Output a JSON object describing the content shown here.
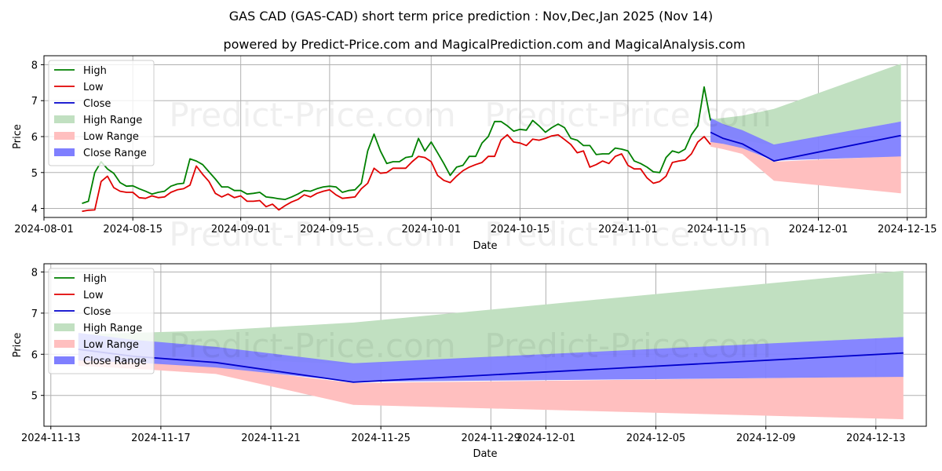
{
  "title": "GAS CAD (GAS-CAD) short term price prediction : Nov,Dec,Jan 2025 (Nov 14)",
  "subtitle": "powered by Predict-Price.com and MagicalPrediction.com and MagicalAnalysis.com",
  "watermark": "Predict-Price.com",
  "colors": {
    "high": "#008000",
    "low": "#e00000",
    "close": "#0000cc",
    "high_range": "#c1e0c1",
    "low_range": "#ffbfbf",
    "close_range": "#7f7fff"
  },
  "chart_data": [
    {
      "type": "line",
      "xlabel": "Date",
      "ylabel": "Price",
      "x_domain": [
        "2024-08-01",
        "2024-12-18"
      ],
      "ylim": [
        3.75,
        8.25
      ],
      "x_ticks": [
        "2024-08-01",
        "2024-08-15",
        "2024-09-01",
        "2024-09-15",
        "2024-10-01",
        "2024-10-15",
        "2024-11-01",
        "2024-11-15",
        "2024-12-01",
        "2024-12-15"
      ],
      "y_ticks": [
        4,
        5,
        6,
        7,
        8
      ],
      "grid": true,
      "legend": [
        "High",
        "Low",
        "Close",
        "High Range",
        "Low Range",
        "Close Range"
      ],
      "legend_position": "top-left",
      "history": {
        "dates": [
          "2024-08-07",
          "2024-08-08",
          "2024-08-09",
          "2024-08-10",
          "2024-08-11",
          "2024-08-12",
          "2024-08-13",
          "2024-08-14",
          "2024-08-15",
          "2024-08-16",
          "2024-08-17",
          "2024-08-18",
          "2024-08-19",
          "2024-08-20",
          "2024-08-21",
          "2024-08-22",
          "2024-08-23",
          "2024-08-24",
          "2024-08-25",
          "2024-08-26",
          "2024-08-27",
          "2024-08-28",
          "2024-08-29",
          "2024-08-30",
          "2024-08-31",
          "2024-09-01",
          "2024-09-02",
          "2024-09-03",
          "2024-09-04",
          "2024-09-05",
          "2024-09-06",
          "2024-09-07",
          "2024-09-08",
          "2024-09-09",
          "2024-09-10",
          "2024-09-11",
          "2024-09-12",
          "2024-09-13",
          "2024-09-14",
          "2024-09-15",
          "2024-09-16",
          "2024-09-17",
          "2024-09-18",
          "2024-09-19",
          "2024-09-20",
          "2024-09-21",
          "2024-09-22",
          "2024-09-23",
          "2024-09-24",
          "2024-09-25",
          "2024-09-26",
          "2024-09-27",
          "2024-09-28",
          "2024-09-29",
          "2024-09-30",
          "2024-10-01",
          "2024-10-02",
          "2024-10-03",
          "2024-10-04",
          "2024-10-05",
          "2024-10-06",
          "2024-10-07",
          "2024-10-08",
          "2024-10-09",
          "2024-10-10",
          "2024-10-11",
          "2024-10-12",
          "2024-10-13",
          "2024-10-14",
          "2024-10-15",
          "2024-10-16",
          "2024-10-17",
          "2024-10-18",
          "2024-10-19",
          "2024-10-20",
          "2024-10-21",
          "2024-10-22",
          "2024-10-23",
          "2024-10-24",
          "2024-10-25",
          "2024-10-26",
          "2024-10-27",
          "2024-10-28",
          "2024-10-29",
          "2024-10-30",
          "2024-10-31",
          "2024-11-01",
          "2024-11-02",
          "2024-11-03",
          "2024-11-04",
          "2024-11-05",
          "2024-11-06",
          "2024-11-07",
          "2024-11-08",
          "2024-11-09",
          "2024-11-10",
          "2024-11-11",
          "2024-11-12",
          "2024-11-13",
          "2024-11-14"
        ],
        "high": [
          4.14,
          4.2,
          5.0,
          5.3,
          5.1,
          4.98,
          4.72,
          4.62,
          4.63,
          4.55,
          4.48,
          4.4,
          4.45,
          4.48,
          4.62,
          4.68,
          4.7,
          5.38,
          5.32,
          5.22,
          5.02,
          4.82,
          4.6,
          4.6,
          4.5,
          4.5,
          4.4,
          4.42,
          4.45,
          4.32,
          4.3,
          4.27,
          4.25,
          4.32,
          4.4,
          4.5,
          4.48,
          4.55,
          4.6,
          4.62,
          4.6,
          4.45,
          4.5,
          4.52,
          4.7,
          5.6,
          6.07,
          5.6,
          5.25,
          5.3,
          5.3,
          5.42,
          5.45,
          5.95,
          5.6,
          5.85,
          5.55,
          5.25,
          4.92,
          5.15,
          5.2,
          5.45,
          5.45,
          5.82,
          6.0,
          6.42,
          6.42,
          6.3,
          6.15,
          6.2,
          6.18,
          6.45,
          6.3,
          6.12,
          6.25,
          6.35,
          6.25,
          5.95,
          5.9,
          5.75,
          5.75,
          5.5,
          5.52,
          5.52,
          5.68,
          5.65,
          5.6,
          5.32,
          5.25,
          5.15,
          5.02,
          5.0,
          5.42,
          5.6,
          5.55,
          5.65,
          6.05,
          6.3,
          7.38,
          6.45
        ],
        "low": [
          3.92,
          3.95,
          3.96,
          4.75,
          4.9,
          4.58,
          4.48,
          4.45,
          4.45,
          4.3,
          4.28,
          4.35,
          4.3,
          4.32,
          4.45,
          4.52,
          4.55,
          4.65,
          5.18,
          4.95,
          4.75,
          4.42,
          4.32,
          4.4,
          4.3,
          4.35,
          4.2,
          4.2,
          4.22,
          4.05,
          4.12,
          3.96,
          4.08,
          4.18,
          4.25,
          4.38,
          4.32,
          4.42,
          4.48,
          4.52,
          4.38,
          4.28,
          4.3,
          4.32,
          4.55,
          4.7,
          5.12,
          4.98,
          5.0,
          5.12,
          5.12,
          5.12,
          5.3,
          5.45,
          5.42,
          5.3,
          4.92,
          4.78,
          4.72,
          4.9,
          5.05,
          5.15,
          5.22,
          5.28,
          5.45,
          5.45,
          5.9,
          6.05,
          5.85,
          5.82,
          5.75,
          5.93,
          5.9,
          5.95,
          6.02,
          6.05,
          5.92,
          5.78,
          5.55,
          5.6,
          5.15,
          5.22,
          5.32,
          5.25,
          5.45,
          5.52,
          5.2,
          5.1,
          5.1,
          4.85,
          4.7,
          4.75,
          4.9,
          5.28,
          5.32,
          5.35,
          5.52,
          5.85,
          6.0,
          5.78
        ]
      },
      "forecast": {
        "dates": [
          "2024-11-14",
          "2024-11-16",
          "2024-11-19",
          "2024-11-24",
          "2024-12-14"
        ],
        "close": [
          6.12,
          5.95,
          5.8,
          5.32,
          6.03
        ],
        "high_range": {
          "upper": [
            6.48,
            6.52,
            6.58,
            6.77,
            8.03
          ],
          "lower": [
            6.12,
            6.0,
            5.9,
            5.75,
            6.42
          ]
        },
        "low_range": {
          "upper": [
            6.0,
            5.8,
            5.7,
            5.3,
            5.46
          ],
          "lower": [
            5.72,
            5.65,
            5.52,
            4.77,
            4.42
          ]
        },
        "close_range": {
          "upper": [
            6.52,
            6.35,
            6.18,
            5.78,
            6.42
          ],
          "lower": [
            5.85,
            5.8,
            5.68,
            5.33,
            5.45
          ]
        }
      }
    },
    {
      "type": "area",
      "xlabel": "Date",
      "ylabel": "Price",
      "x_domain": [
        "2024-11-12T18:00",
        "2024-12-14T20:00"
      ],
      "ylim": [
        4.25,
        8.2
      ],
      "x_ticks": [
        "2024-11-13",
        "2024-11-17",
        "2024-11-21",
        "2024-11-25",
        "2024-11-29",
        "2024-12-01",
        "2024-12-05",
        "2024-12-09",
        "2024-12-13"
      ],
      "y_ticks": [
        5,
        6,
        7,
        8
      ],
      "grid": true,
      "legend": [
        "High",
        "Low",
        "Close",
        "High Range",
        "Low Range",
        "Close Range"
      ],
      "legend_position": "top-left",
      "forecast": {
        "dates": [
          "2024-11-14",
          "2024-11-16",
          "2024-11-19",
          "2024-11-24",
          "2024-12-14"
        ],
        "close": [
          6.12,
          5.95,
          5.8,
          5.32,
          6.03
        ],
        "high_range": {
          "upper": [
            6.48,
            6.52,
            6.58,
            6.77,
            8.03
          ],
          "lower": [
            6.12,
            6.0,
            5.9,
            5.75,
            6.42
          ]
        },
        "low_range": {
          "upper": [
            6.0,
            5.8,
            5.7,
            5.3,
            5.46
          ],
          "lower": [
            5.72,
            5.65,
            5.52,
            4.77,
            4.42
          ]
        },
        "close_range": {
          "upper": [
            6.52,
            6.35,
            6.18,
            5.78,
            6.42
          ],
          "lower": [
            5.85,
            5.8,
            5.68,
            5.33,
            5.45
          ]
        }
      }
    }
  ]
}
